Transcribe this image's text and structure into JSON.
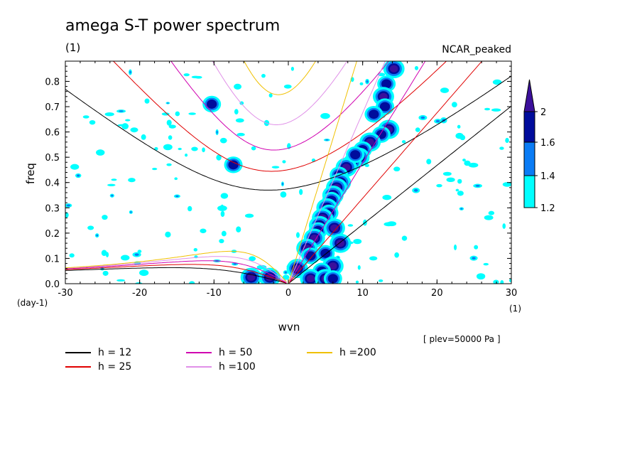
{
  "title": "amega S-T power spectrum",
  "subtitle": "(1)",
  "case_label": "NCAR_peaked",
  "note": "[ plev=50000 Pa ]",
  "chart_data": {
    "type": "heatmap",
    "xlabel": "wvn",
    "ylabel": "freq",
    "x_unit": "(1)",
    "y_unit": "(day-1)",
    "xlim": [
      -30,
      30
    ],
    "ylim": [
      0,
      0.88
    ],
    "x_ticks": [
      -30,
      -20,
      -10,
      0,
      10,
      20,
      30
    ],
    "y_ticks": [
      0.0,
      0.1,
      0.2,
      0.3,
      0.4,
      0.5,
      0.6,
      0.7,
      0.8
    ],
    "x_tick_labels": [
      "-30",
      "-20",
      "-10",
      "0",
      "10",
      "20",
      "30"
    ],
    "y_tick_labels": [
      "0.0",
      "0.1",
      "0.2",
      "0.3",
      "0.4",
      "0.5",
      "0.6",
      "0.7",
      "0.8"
    ],
    "colorbar": {
      "levels": [
        1.2,
        1.4,
        1.6,
        2
      ],
      "level_labels": [
        "1.2",
        "1.4",
        "1.6",
        "2"
      ],
      "colors": [
        "#00ffff",
        "#0a7cf5",
        "#000c9c",
        "#3b0f9b"
      ]
    },
    "dispersion_curves": [
      {
        "label": "h = 12",
        "color": "#000000"
      },
      {
        "label": "h = 25",
        "color": "#e00000"
      },
      {
        "label": "h = 50",
        "color": "#d000b0"
      },
      {
        "label": "h =100",
        "color": "#e090e8"
      },
      {
        "label": "h =200",
        "color": "#f0c000"
      }
    ],
    "blobs": [
      {
        "x": 14.2,
        "y": 0.85,
        "l": 3
      },
      {
        "x": 13.2,
        "y": 0.79,
        "l": 2
      },
      {
        "x": 12.8,
        "y": 0.74,
        "l": 3
      },
      {
        "x": 13.0,
        "y": 0.7,
        "l": 2
      },
      {
        "x": 11.5,
        "y": 0.67,
        "l": 2
      },
      {
        "x": 13.5,
        "y": 0.61,
        "l": 3
      },
      {
        "x": 12.5,
        "y": 0.59,
        "l": 2
      },
      {
        "x": 11.0,
        "y": 0.56,
        "l": 3
      },
      {
        "x": 10.0,
        "y": 0.53,
        "l": 2
      },
      {
        "x": 9.5,
        "y": 0.5,
        "l": 3
      },
      {
        "x": 8.6,
        "y": 0.48,
        "l": 2
      },
      {
        "x": 7.8,
        "y": 0.46,
        "l": 3
      },
      {
        "x": 6.8,
        "y": 0.43,
        "l": 2
      },
      {
        "x": 7.0,
        "y": 0.4,
        "l": 3
      },
      {
        "x": 6.5,
        "y": 0.38,
        "l": 3
      },
      {
        "x": 6.0,
        "y": 0.35,
        "l": 3
      },
      {
        "x": 5.8,
        "y": 0.33,
        "l": 2
      },
      {
        "x": 5.2,
        "y": 0.3,
        "l": 3
      },
      {
        "x": 5.5,
        "y": 0.28,
        "l": 2
      },
      {
        "x": 4.6,
        "y": 0.26,
        "l": 3
      },
      {
        "x": 4.2,
        "y": 0.23,
        "l": 3
      },
      {
        "x": 4.0,
        "y": 0.21,
        "l": 2
      },
      {
        "x": 3.5,
        "y": 0.18,
        "l": 3
      },
      {
        "x": 6.2,
        "y": 0.22,
        "l": 3
      },
      {
        "x": 7.0,
        "y": 0.16,
        "l": 3
      },
      {
        "x": 2.5,
        "y": 0.14,
        "l": 3
      },
      {
        "x": 3.0,
        "y": 0.11,
        "l": 2
      },
      {
        "x": 5.0,
        "y": 0.12,
        "l": 2
      },
      {
        "x": 6.0,
        "y": 0.07,
        "l": 3
      },
      {
        "x": 4.5,
        "y": 0.05,
        "l": 2
      },
      {
        "x": 1.2,
        "y": 0.06,
        "l": 3
      },
      {
        "x": 3.0,
        "y": 0.02,
        "l": 3
      },
      {
        "x": 5.0,
        "y": 0.02,
        "l": 3
      },
      {
        "x": 6.0,
        "y": 0.02,
        "l": 2
      },
      {
        "x": -5.0,
        "y": 0.025,
        "l": 3
      },
      {
        "x": -2.5,
        "y": 0.025,
        "l": 3
      },
      {
        "x": -10.3,
        "y": 0.71,
        "l": 2
      },
      {
        "x": -7.4,
        "y": 0.47,
        "l": 2
      },
      {
        "x": 9.0,
        "y": 0.51,
        "l": 2
      }
    ],
    "noise_seed": 7
  }
}
